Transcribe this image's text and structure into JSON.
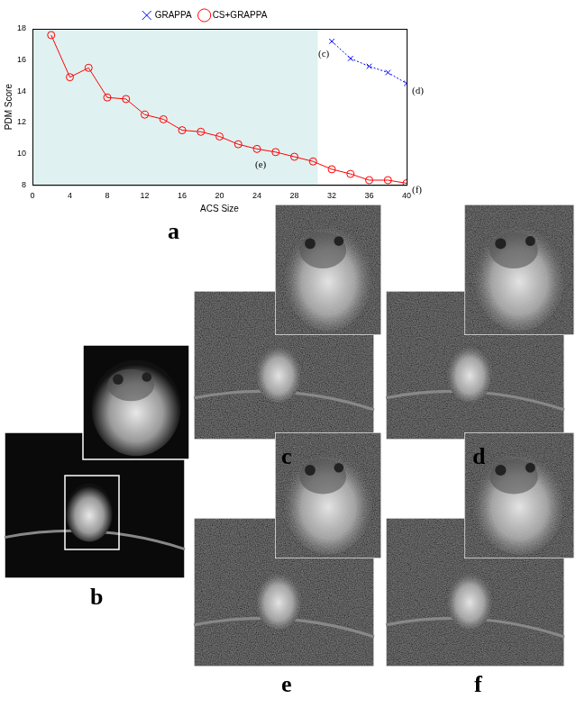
{
  "chart_data": {
    "type": "line",
    "x_label": "ACS Size",
    "y_label": "PDM Score",
    "xlim": [
      0,
      40
    ],
    "xticks": [
      0,
      4,
      8,
      12,
      16,
      20,
      24,
      28,
      32,
      36,
      40
    ],
    "ylim": [
      8,
      18
    ],
    "yticks": [
      8,
      10,
      12,
      14,
      16,
      18
    ],
    "grid": false,
    "legend": "top",
    "shade": {
      "xlim": [
        0,
        30.5
      ],
      "color": "#dff1f1"
    },
    "series": [
      {
        "name": "GRAPPA",
        "color": "#0000ff",
        "marker": "x",
        "line_style": "dotted",
        "x": [
          32,
          34,
          36,
          38,
          40
        ],
        "values": [
          17.2,
          16.1,
          15.6,
          15.2,
          14.5
        ]
      },
      {
        "name": "CS+GRAPPA",
        "color": "#ff0000",
        "marker": "circle",
        "line_style": "solid",
        "x": [
          2,
          4,
          6,
          8,
          10,
          12,
          14,
          16,
          18,
          20,
          22,
          24,
          26,
          28,
          30,
          32,
          34,
          36,
          38,
          40
        ],
        "values": [
          17.6,
          14.9,
          15.5,
          13.6,
          13.5,
          12.5,
          12.2,
          11.5,
          11.4,
          11.1,
          10.6,
          10.3,
          10.1,
          9.8,
          9.5,
          9.0,
          8.7,
          8.3,
          8.3,
          8.1
        ]
      }
    ],
    "annotations": [
      {
        "text": "(c)",
        "x": 32,
        "y": 17.2
      },
      {
        "text": "(d)",
        "x": 40,
        "y": 14.5
      },
      {
        "text": "(e)",
        "x": 24,
        "y": 10.3
      },
      {
        "text": "(f)",
        "x": 40,
        "y": 8.1
      }
    ]
  },
  "panel_labels": [
    "a",
    "b",
    "c",
    "d",
    "e",
    "f"
  ]
}
